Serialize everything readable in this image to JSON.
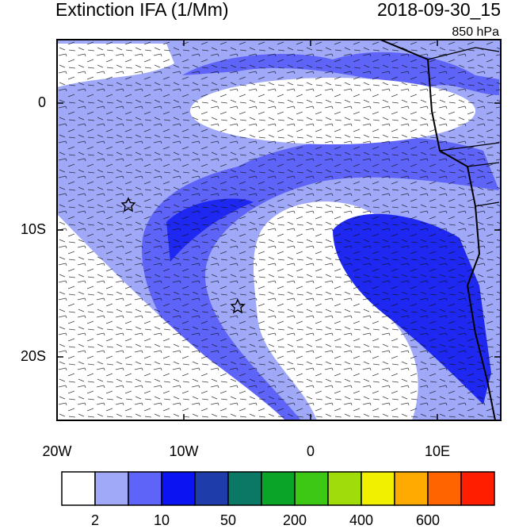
{
  "chart_data": {
    "type": "map",
    "title": "Extinction IFA (1/Mm)",
    "subtitle": "2018-09-30_15",
    "level": "850 hPa",
    "xlim": [
      -20,
      15
    ],
    "ylim": [
      -25,
      5
    ],
    "xticks": [
      {
        "value": -20,
        "label": "20W"
      },
      {
        "value": -10,
        "label": "10W"
      },
      0,
      {
        "value": 10,
        "label": "10E"
      }
    ],
    "yticks": [
      0,
      {
        "value": -10,
        "label": "10S"
      },
      {
        "value": -20,
        "label": "20S"
      }
    ],
    "colorbar": {
      "colors": [
        "#ffffff",
        "#a0a8f8",
        "#5f64f8",
        "#0a14f0",
        "#1e3caa",
        "#0a7864",
        "#0aa528",
        "#3cc814",
        "#a0dc0a",
        "#f0f000",
        "#ffaa00",
        "#ff6400",
        "#ff1e00"
      ],
      "labels": [
        2,
        10,
        50,
        200,
        400,
        600
      ]
    }
  }
}
